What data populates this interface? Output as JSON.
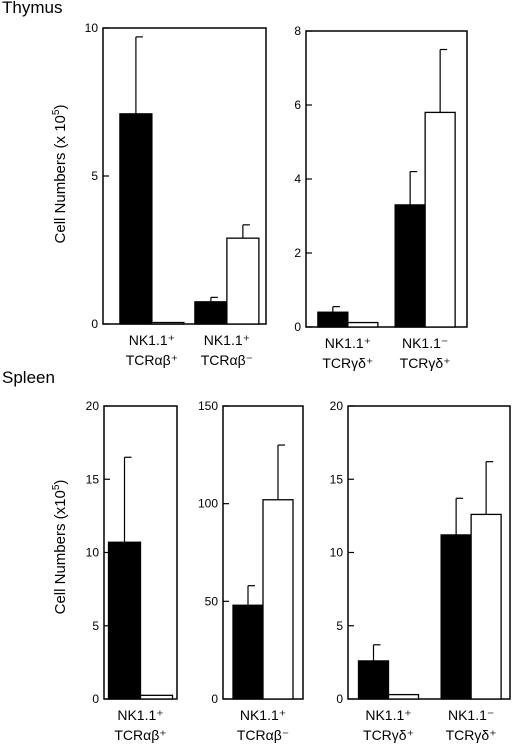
{
  "sections": {
    "thymus": "Thymus",
    "spleen": "Spleen"
  },
  "ylabel": {
    "main": "Cell Numbers (x 10",
    "exp": "5",
    "close": ")"
  },
  "ylabel_spleen": {
    "main": "Cell Numbers (x10",
    "exp": "5",
    "close": ")"
  },
  "legend_colors": {
    "filled": "#000000",
    "open": "#ffffff"
  },
  "chart_data": [
    {
      "type": "bar",
      "section": "Thymus",
      "ylim": [
        0,
        10
      ],
      "yticks": [
        0,
        5,
        10
      ],
      "groups": [
        {
          "label1": "NK1.1⁺",
          "label2": "TCRαβ⁺",
          "values": [
            7.1,
            0.05
          ],
          "errors": [
            2.6,
            0
          ]
        },
        {
          "label1": "NK1.1⁺",
          "label2": "TCRαβ⁻",
          "values": [
            0.75,
            2.9
          ],
          "errors": [
            0.15,
            0.45
          ]
        }
      ]
    },
    {
      "type": "bar",
      "section": "Thymus",
      "ylim": [
        0,
        8
      ],
      "yticks": [
        0,
        2,
        4,
        6,
        8
      ],
      "groups": [
        {
          "label1": "NK1.1⁺",
          "label2": "TCRγδ⁺",
          "values": [
            0.4,
            0.12
          ],
          "errors": [
            0.15,
            0
          ]
        },
        {
          "label1": "NK1.1⁻",
          "label2": "TCRγδ⁺",
          "values": [
            3.3,
            5.8
          ],
          "errors": [
            0.9,
            1.7
          ]
        }
      ]
    },
    {
      "type": "bar",
      "section": "Spleen",
      "ylim": [
        0,
        20
      ],
      "yticks": [
        0,
        5,
        10,
        15,
        20
      ],
      "groups": [
        {
          "label1": "NK1.1⁺",
          "label2": "TCRαβ⁺",
          "values": [
            10.7,
            0.25
          ],
          "errors": [
            5.8,
            0
          ]
        }
      ]
    },
    {
      "type": "bar",
      "section": "Spleen",
      "ylim": [
        0,
        150
      ],
      "yticks": [
        0,
        50,
        100,
        150
      ],
      "groups": [
        {
          "label1": "NK1.1⁺",
          "label2": "TCRαβ⁻",
          "values": [
            48,
            102
          ],
          "errors": [
            10,
            28
          ]
        }
      ]
    },
    {
      "type": "bar",
      "section": "Spleen",
      "ylim": [
        0,
        20
      ],
      "yticks": [
        0,
        5,
        10,
        15,
        20
      ],
      "groups": [
        {
          "label1": "NK1.1⁺",
          "label2": "TCRγδ⁺",
          "values": [
            2.6,
            0.3
          ],
          "errors": [
            1.1,
            0
          ]
        },
        {
          "label1": "NK1.1⁻",
          "label2": "TCRγδ⁺",
          "values": [
            11.2,
            12.6
          ],
          "errors": [
            2.5,
            3.6
          ]
        }
      ]
    }
  ]
}
